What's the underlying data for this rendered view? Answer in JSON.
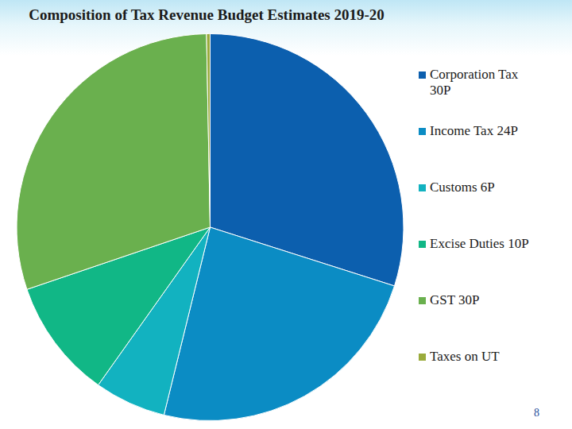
{
  "chart_data": {
    "type": "pie",
    "title": "Composition of  Tax Revenue Budget Estimates 2019-20",
    "categories": [
      "Corporation Tax 30P",
      "Income Tax 24P",
      "Customs 6P",
      "Excise Duties 10P",
      "GST 30P",
      "Taxes on UT"
    ],
    "values": [
      30,
      24,
      6,
      10,
      30,
      0.3
    ],
    "colors": [
      "#0c5fae",
      "#0b8cc4",
      "#12b2c0",
      "#11b786",
      "#6ab04e",
      "#9aab3c"
    ],
    "legend": "right"
  },
  "page_number": "8"
}
